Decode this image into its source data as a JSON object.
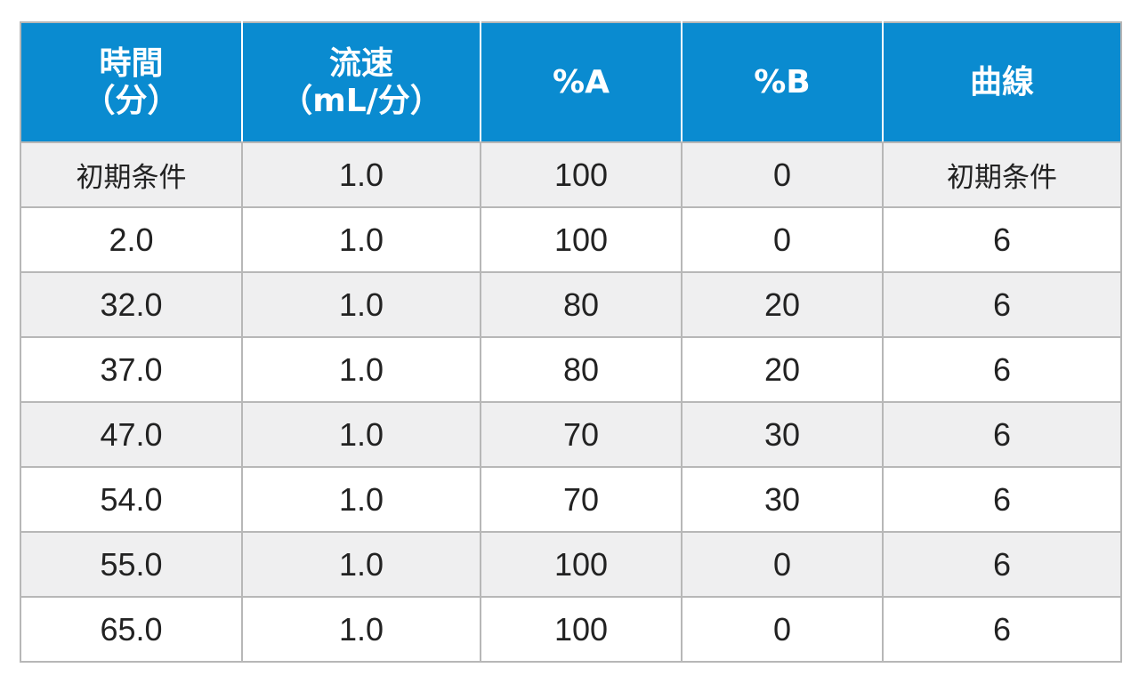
{
  "chart_data": {
    "type": "table",
    "columns": [
      {
        "line1": "時間",
        "line2": "（分）"
      },
      {
        "line1": "流速",
        "line2": "（mL/分）"
      },
      {
        "line1": "%A",
        "line2": ""
      },
      {
        "line1": "%B",
        "line2": ""
      },
      {
        "line1": "曲線",
        "line2": ""
      }
    ],
    "rows": [
      [
        "初期条件",
        "1.0",
        "100",
        "0",
        "初期条件"
      ],
      [
        "2.0",
        "1.0",
        "100",
        "0",
        "6"
      ],
      [
        "32.0",
        "1.0",
        "80",
        "20",
        "6"
      ],
      [
        "37.0",
        "1.0",
        "80",
        "20",
        "6"
      ],
      [
        "47.0",
        "1.0",
        "70",
        "30",
        "6"
      ],
      [
        "54.0",
        "1.0",
        "70",
        "30",
        "6"
      ],
      [
        "55.0",
        "1.0",
        "100",
        "0",
        "6"
      ],
      [
        "65.0",
        "1.0",
        "100",
        "0",
        "6"
      ]
    ],
    "header_color": "#0a8bd0",
    "stripe_color": "#efeff0"
  }
}
